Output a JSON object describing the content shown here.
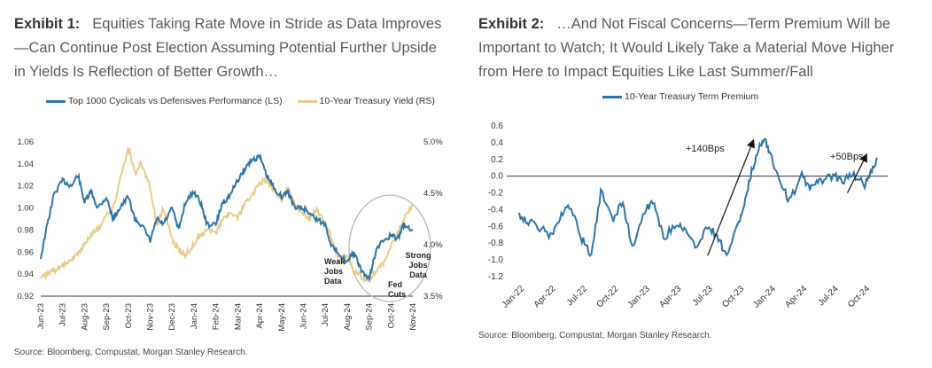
{
  "exhibit1": {
    "label": "Exhibit 1:",
    "title": "Equities Taking Rate Move in Stride as Data Improves—Can Continue Post Election Assuming Potential Further Upside in Yields Is Reflection of Better Growth…",
    "source": "Source: Bloomberg, Compustat, Morgan Stanley Research.",
    "colors": {
      "cyclicals": "#2e75a6",
      "yield": "#e8cd8a",
      "circle": "#b8b8b8"
    }
  },
  "exhibit2": {
    "label": "Exhibit 2:",
    "title": "…And Not Fiscal Concerns—Term Premium Will be Important to Watch; It Would Likely Take a Material Move Higher from Here to Impact Equities Like Last Summer/Fall",
    "source": "Source: Bloomberg, Compustat, Morgan Stanley Research.",
    "colors": {
      "term_premium": "#2e75a6"
    }
  },
  "chart_data": [
    {
      "type": "line",
      "x_ticks": [
        "Jun-23",
        "Jul-23",
        "Aug-23",
        "Sep-23",
        "Oct-23",
        "Nov-23",
        "Dec-23",
        "Jan-24",
        "Feb-24",
        "Mar-24",
        "Apr-24",
        "May-24",
        "Jun-24",
        "Jul-24",
        "Aug-24",
        "Sep-24",
        "Oct-24",
        "Nov-24"
      ],
      "y_left_ticks": [
        "0.92",
        "0.94",
        "0.96",
        "0.98",
        "1.00",
        "1.02",
        "1.04",
        "1.06"
      ],
      "y_left_range": [
        0.92,
        1.06
      ],
      "y_right_ticks": [
        "3.5%",
        "4.0%",
        "4.5%",
        "5.0%"
      ],
      "y_right_range": [
        3.5,
        5.0
      ],
      "legend_position": "top",
      "series": [
        {
          "name": "Top 1000 Cyclicals vs Defensives Performance (LS)",
          "axis": "left",
          "x": [
            0,
            0.3,
            0.6,
            1,
            1.4,
            1.7,
            2,
            2.3,
            2.6,
            3,
            3.3,
            3.6,
            4,
            4.3,
            4.6,
            5,
            5.3,
            5.6,
            6,
            6.3,
            6.6,
            7,
            7.3,
            7.6,
            8,
            8.3,
            8.6,
            9,
            9.3,
            9.6,
            10,
            10.3,
            10.6,
            11,
            11.3,
            11.6,
            12,
            12.3,
            12.6,
            13,
            13.3,
            13.6,
            14,
            14.3,
            14.6,
            15,
            15.3,
            15.6,
            16,
            16.3,
            16.6,
            17
          ],
          "values": [
            0.955,
            0.985,
            1.012,
            1.025,
            1.02,
            1.03,
            1.005,
            1.015,
            1.0,
            1.01,
            0.99,
            1.0,
            1.01,
            0.99,
            0.985,
            0.97,
            0.99,
            0.985,
            1.0,
            0.98,
            1.005,
            1.015,
            1.005,
            0.985,
            0.985,
            1.005,
            1.01,
            1.025,
            1.035,
            1.043,
            1.047,
            1.03,
            1.02,
            1.01,
            1.015,
            1.0,
            1.0,
            0.995,
            0.99,
            0.985,
            0.965,
            0.96,
            0.95,
            0.96,
            0.945,
            0.935,
            0.96,
            0.97,
            0.975,
            0.972,
            0.985,
            0.98
          ]
        },
        {
          "name": "10-Year Treasury Yield (RS)",
          "axis": "right",
          "x": [
            0,
            0.3,
            0.6,
            1,
            1.4,
            1.7,
            2,
            2.3,
            2.6,
            3,
            3.3,
            3.6,
            4,
            4.3,
            4.6,
            5,
            5.3,
            5.6,
            6,
            6.3,
            6.6,
            7,
            7.3,
            7.6,
            8,
            8.3,
            8.6,
            9,
            9.3,
            9.6,
            10,
            10.3,
            10.6,
            11,
            11.3,
            11.6,
            12,
            12.3,
            12.6,
            13,
            13.3,
            13.6,
            14,
            14.3,
            14.6,
            15,
            15.3,
            15.6,
            16,
            16.3,
            16.6,
            17
          ],
          "values": [
            3.65,
            3.72,
            3.75,
            3.8,
            3.85,
            3.92,
            4.0,
            4.1,
            4.15,
            4.28,
            4.35,
            4.6,
            4.95,
            4.7,
            4.8,
            4.55,
            4.2,
            4.35,
            4.05,
            3.95,
            3.9,
            4.0,
            4.1,
            4.15,
            4.1,
            4.25,
            4.3,
            4.25,
            4.4,
            4.45,
            4.6,
            4.62,
            4.55,
            4.45,
            4.55,
            4.4,
            4.3,
            4.25,
            4.35,
            4.2,
            4.05,
            3.85,
            3.9,
            3.75,
            3.7,
            3.65,
            3.75,
            3.8,
            4.0,
            4.1,
            4.25,
            4.4
          ]
        }
      ],
      "annotations": [
        "Weak Jobs Data",
        "Fed Cuts",
        "Strong Jobs Data"
      ]
    },
    {
      "type": "line",
      "x_ticks": [
        "Jan-22",
        "Apr-22",
        "Jul-22",
        "Oct-22",
        "Jan-23",
        "Apr-23",
        "Jul-23",
        "Oct-23",
        "Jan-24",
        "Apr-24",
        "Jul-24",
        "Oct-24"
      ],
      "y_ticks": [
        "0.6",
        "0.4",
        "0.2",
        "0.0",
        "-0.2",
        "-0.4",
        "-0.6",
        "-0.8",
        "-1.0",
        "-1.2"
      ],
      "ylim": [
        -1.2,
        0.6
      ],
      "legend_position": "top",
      "series": [
        {
          "name": "10-Year Treasury Term Premium",
          "x": [
            0,
            0.3,
            0.6,
            1,
            1.3,
            1.6,
            2,
            2.3,
            2.6,
            3,
            3.3,
            3.6,
            4,
            4.3,
            4.6,
            5,
            5.3,
            5.6,
            6,
            6.3,
            6.6,
            7,
            7.2,
            7.4,
            7.6,
            7.8,
            8,
            8.3,
            8.6,
            9,
            9.3,
            9.6,
            10,
            10.3,
            10.6,
            11,
            11.2,
            11.4
          ],
          "values": [
            -0.45,
            -0.55,
            -0.6,
            -0.72,
            -0.5,
            -0.35,
            -0.75,
            -0.95,
            -0.2,
            -0.5,
            -0.3,
            -0.85,
            -0.4,
            -0.3,
            -0.75,
            -0.55,
            -0.65,
            -0.85,
            -0.6,
            -0.7,
            -0.95,
            -0.55,
            -0.3,
            0.05,
            0.3,
            0.48,
            0.25,
            -0.05,
            -0.3,
            0.0,
            -0.15,
            -0.05,
            0.0,
            -0.05,
            0.02,
            -0.1,
            0.05,
            0.22
          ]
        }
      ],
      "annotations": [
        "+140Bps",
        "+50Bps"
      ]
    }
  ]
}
